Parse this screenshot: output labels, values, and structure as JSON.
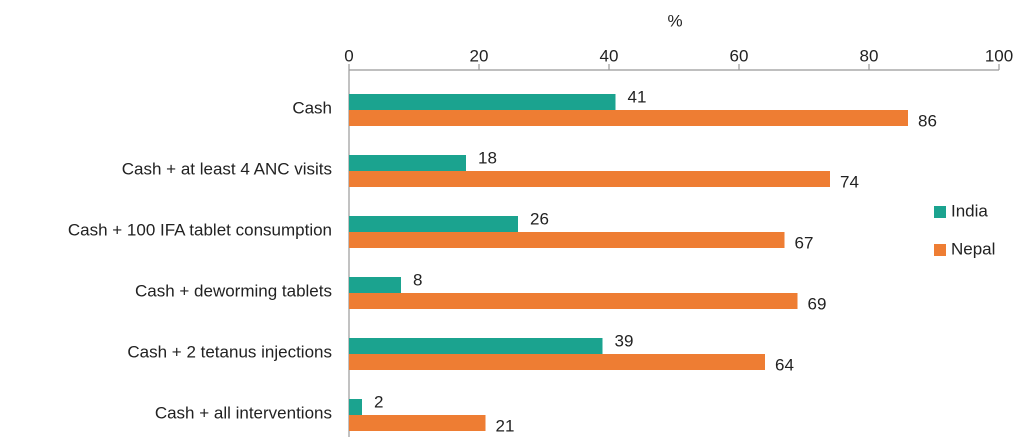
{
  "chart_data": {
    "type": "hbar",
    "xlabel": "%",
    "categories": [
      "Cash",
      "Cash + at least 4 ANC visits",
      "Cash + 100 IFA tablet consumption",
      "Cash + deworming tablets",
      "Cash + 2 tetanus injections",
      "Cash + all interventions"
    ],
    "series": [
      {
        "name": "India",
        "color": "#1ba38f",
        "values": [
          41,
          18,
          26,
          8,
          39,
          2
        ]
      },
      {
        "name": "Nepal",
        "color": "#ee7d33",
        "values": [
          86,
          74,
          67,
          69,
          64,
          21
        ]
      }
    ],
    "xlim": [
      0,
      100
    ],
    "xticks": [
      0,
      20,
      40,
      60,
      80,
      100
    ],
    "legend": "right"
  }
}
